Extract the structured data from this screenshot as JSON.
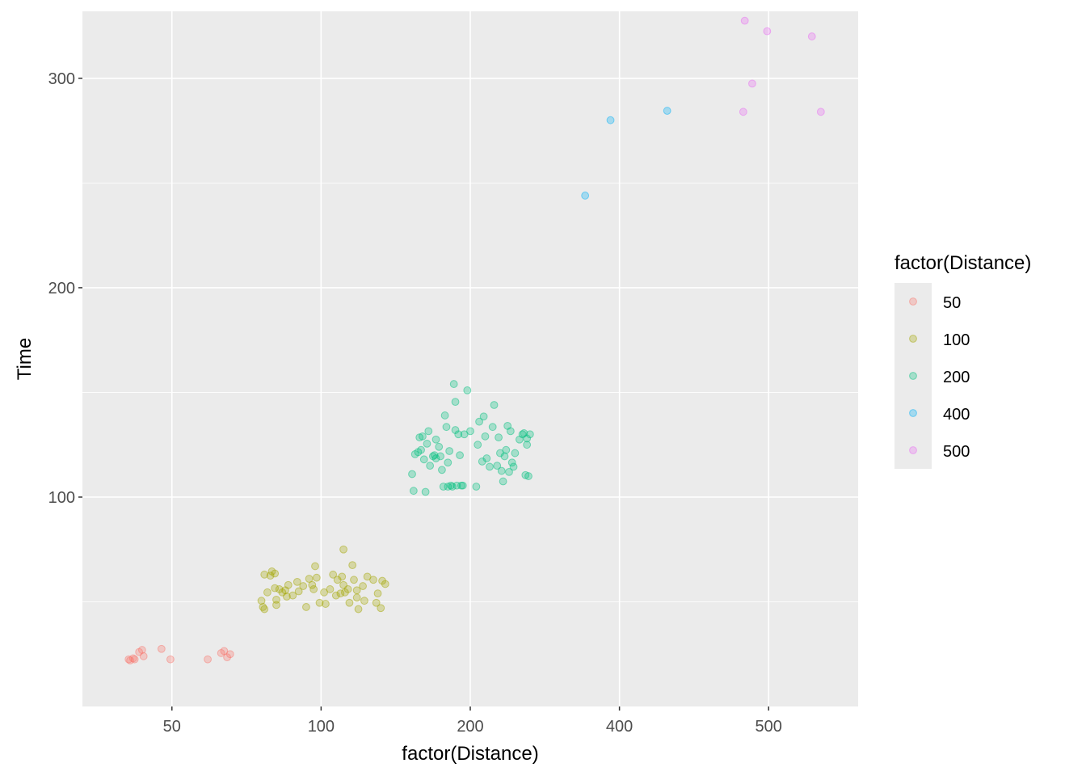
{
  "chart_data": {
    "type": "scatter",
    "xlabel": "factor(Distance)",
    "ylabel": "Time",
    "categories": [
      "50",
      "100",
      "200",
      "400",
      "500"
    ],
    "ylim": [
      0,
      332
    ],
    "y_ticks": [
      100,
      200,
      300
    ],
    "grid": true,
    "legend_title": "factor(Distance)",
    "legend_position": "right",
    "point_alpha": 0.3,
    "series": [
      {
        "name": "50",
        "color": "#F8766D",
        "points": [
          [
            -0.29,
            22.5
          ],
          [
            -0.28,
            22.0
          ],
          [
            -0.26,
            23.0
          ],
          [
            -0.25,
            22.5
          ],
          [
            -0.22,
            26.0
          ],
          [
            -0.2,
            27.0
          ],
          [
            -0.19,
            24.0
          ],
          [
            -0.07,
            27.5
          ],
          [
            -0.01,
            22.5
          ],
          [
            0.24,
            22.5
          ],
          [
            0.33,
            25.5
          ],
          [
            0.35,
            26.5
          ],
          [
            0.37,
            23.5
          ],
          [
            0.39,
            25.0
          ]
        ]
      },
      {
        "name": "100",
        "color": "#A3A500",
        "points": [
          [
            -0.4,
            50.5
          ],
          [
            -0.39,
            47.5
          ],
          [
            -0.38,
            46.5
          ],
          [
            -0.38,
            63.0
          ],
          [
            -0.36,
            54.5
          ],
          [
            -0.34,
            62.5
          ],
          [
            -0.33,
            64.5
          ],
          [
            -0.31,
            56.5
          ],
          [
            -0.31,
            63.5
          ],
          [
            -0.3,
            48.5
          ],
          [
            -0.3,
            51.0
          ],
          [
            -0.28,
            56.0
          ],
          [
            -0.26,
            54.5
          ],
          [
            -0.24,
            55.5
          ],
          [
            -0.23,
            52.5
          ],
          [
            -0.22,
            58.0
          ],
          [
            -0.19,
            53.0
          ],
          [
            -0.16,
            59.5
          ],
          [
            -0.15,
            55.0
          ],
          [
            -0.12,
            57.5
          ],
          [
            -0.1,
            47.5
          ],
          [
            -0.08,
            61.0
          ],
          [
            -0.06,
            58.0
          ],
          [
            -0.05,
            56.0
          ],
          [
            -0.04,
            67.0
          ],
          [
            -0.03,
            61.5
          ],
          [
            -0.01,
            49.5
          ],
          [
            0.02,
            54.5
          ],
          [
            0.03,
            49.0
          ],
          [
            0.06,
            56.0
          ],
          [
            0.08,
            63.0
          ],
          [
            0.1,
            53.0
          ],
          [
            0.11,
            60.5
          ],
          [
            0.13,
            54.0
          ],
          [
            0.14,
            62.0
          ],
          [
            0.15,
            58.0
          ],
          [
            0.16,
            54.5
          ],
          [
            0.18,
            56.0
          ],
          [
            0.19,
            49.5
          ],
          [
            0.21,
            67.5
          ],
          [
            0.22,
            60.5
          ],
          [
            0.24,
            52.0
          ],
          [
            0.24,
            55.5
          ],
          [
            0.25,
            46.5
          ],
          [
            0.28,
            57.5
          ],
          [
            0.29,
            50.5
          ],
          [
            0.31,
            62.0
          ],
          [
            0.35,
            60.5
          ],
          [
            0.37,
            49.5
          ],
          [
            0.38,
            54.0
          ],
          [
            0.4,
            47.0
          ],
          [
            0.41,
            60.0
          ],
          [
            0.43,
            58.5
          ],
          [
            0.15,
            75.0
          ]
        ]
      },
      {
        "name": "200",
        "color": "#00BF7D",
        "points": [
          [
            -0.39,
            111.0
          ],
          [
            -0.38,
            103.0
          ],
          [
            -0.37,
            120.5
          ],
          [
            -0.35,
            121.5
          ],
          [
            -0.34,
            128.5
          ],
          [
            -0.33,
            122.5
          ],
          [
            -0.32,
            129.0
          ],
          [
            -0.31,
            118.0
          ],
          [
            -0.3,
            102.5
          ],
          [
            -0.29,
            125.5
          ],
          [
            -0.28,
            131.5
          ],
          [
            -0.27,
            115.0
          ],
          [
            -0.25,
            119.5
          ],
          [
            -0.24,
            120.0
          ],
          [
            -0.23,
            118.5
          ],
          [
            -0.23,
            127.5
          ],
          [
            -0.21,
            124.0
          ],
          [
            -0.2,
            119.5
          ],
          [
            -0.19,
            113.0
          ],
          [
            -0.18,
            105.0
          ],
          [
            -0.17,
            139.0
          ],
          [
            -0.16,
            133.5
          ],
          [
            -0.15,
            105.0
          ],
          [
            -0.15,
            116.5
          ],
          [
            -0.14,
            122.0
          ],
          [
            -0.13,
            105.5
          ],
          [
            -0.12,
            105.0
          ],
          [
            -0.11,
            154.0
          ],
          [
            -0.1,
            145.5
          ],
          [
            -0.1,
            132.0
          ],
          [
            -0.09,
            105.5
          ],
          [
            -0.08,
            130.0
          ],
          [
            -0.07,
            120.0
          ],
          [
            -0.06,
            105.5
          ],
          [
            -0.05,
            105.5
          ],
          [
            -0.04,
            130.0
          ],
          [
            -0.02,
            151.0
          ],
          [
            0.0,
            131.5
          ],
          [
            0.04,
            105.0
          ],
          [
            0.05,
            125.0
          ],
          [
            0.06,
            136.0
          ],
          [
            0.08,
            117.0
          ],
          [
            0.09,
            138.5
          ],
          [
            0.1,
            129.0
          ],
          [
            0.11,
            118.5
          ],
          [
            0.13,
            114.5
          ],
          [
            0.15,
            133.5
          ],
          [
            0.16,
            144.0
          ],
          [
            0.18,
            115.0
          ],
          [
            0.19,
            128.5
          ],
          [
            0.2,
            121.0
          ],
          [
            0.21,
            112.5
          ],
          [
            0.22,
            107.5
          ],
          [
            0.23,
            119.5
          ],
          [
            0.24,
            122.5
          ],
          [
            0.25,
            134.0
          ],
          [
            0.26,
            112.0
          ],
          [
            0.27,
            131.5
          ],
          [
            0.28,
            116.5
          ],
          [
            0.29,
            114.5
          ],
          [
            0.3,
            121.0
          ],
          [
            0.33,
            127.5
          ],
          [
            0.35,
            130.0
          ],
          [
            0.36,
            130.5
          ],
          [
            0.37,
            110.5
          ],
          [
            0.38,
            125.0
          ],
          [
            0.38,
            128.0
          ],
          [
            0.39,
            110.0
          ],
          [
            0.4,
            130.0
          ]
        ]
      },
      {
        "name": "400",
        "color": "#00B0F6",
        "points": [
          [
            -0.23,
            244.0
          ],
          [
            -0.06,
            280.0
          ],
          [
            0.32,
            284.5
          ]
        ]
      },
      {
        "name": "500",
        "color": "#E76BF3",
        "points": [
          [
            -0.17,
            284.0
          ],
          [
            -0.16,
            327.5
          ],
          [
            -0.11,
            297.5
          ],
          [
            -0.01,
            322.5
          ],
          [
            0.29,
            320.0
          ],
          [
            0.35,
            284.0
          ]
        ]
      }
    ]
  }
}
